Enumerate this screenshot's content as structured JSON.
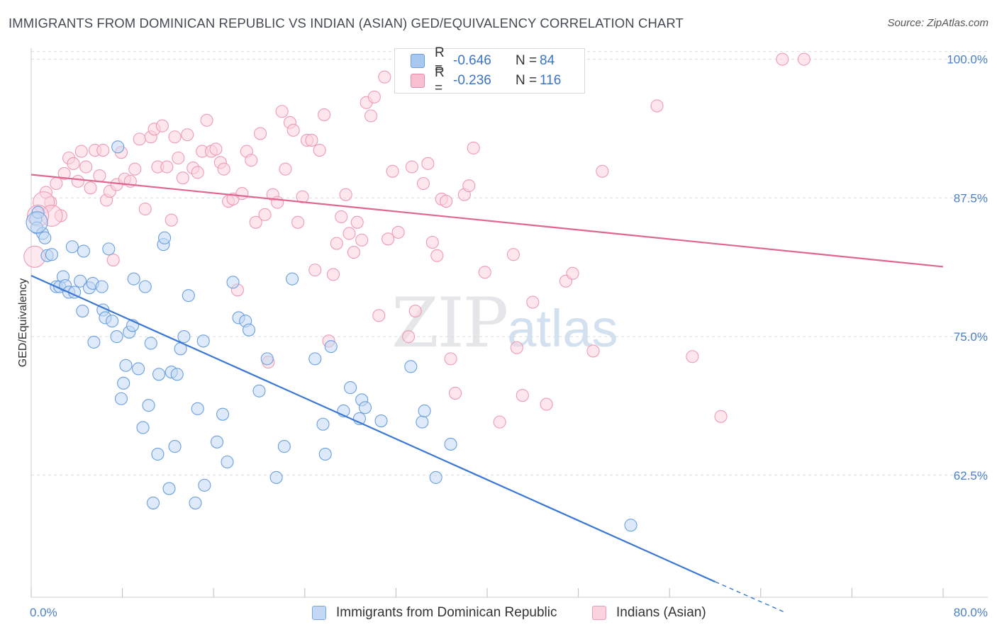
{
  "title": "IMMIGRANTS FROM DOMINICAN REPUBLIC VS INDIAN (ASIAN) GED/EQUIVALENCY CORRELATION CHART",
  "source": "Source: ZipAtlas.com",
  "watermark": {
    "zip": "ZIP",
    "atlas": "atlas"
  },
  "legend_top": {
    "rows": [
      {
        "r_label": "R =",
        "r_value": "-0.646",
        "n_label": "N =",
        "n_value": "84",
        "color": "#a9c8ef",
        "border": "#6a9fe0"
      },
      {
        "r_label": "R =",
        "r_value": "-0.236",
        "n_label": "N =",
        "n_value": "116",
        "color": "#f7bfd0",
        "border": "#e98aa8"
      }
    ]
  },
  "legend_bottom": {
    "items": [
      {
        "label": "Immigrants from Dominican Republic",
        "color": "#c3d8f4",
        "border": "#7aa6e0"
      },
      {
        "label": "Indians (Asian)",
        "color": "#fbd3df",
        "border": "#ef9ab5"
      }
    ]
  },
  "chart_data": {
    "type": "scatter",
    "title": "IMMIGRANTS FROM DOMINICAN REPUBLIC VS INDIAN (ASIAN) GED/EQUIVALENCY CORRELATION CHART",
    "xlabel": "",
    "ylabel": "GED/Equivalency",
    "xlim": [
      0,
      80
    ],
    "ylim": [
      51.5,
      101
    ],
    "x_tick_labels": [
      "0.0%",
      "80.0%"
    ],
    "y_ticks": [
      62.5,
      75.0,
      87.5,
      100.0
    ],
    "y_tick_labels": [
      "62.5%",
      "75.0%",
      "87.5%",
      "100.0%"
    ],
    "grid": true,
    "legend_position": "top-center",
    "series": [
      {
        "name": "Immigrants from Dominican Republic",
        "color": "#6a9fe0",
        "fill": "#c3d8f4",
        "trend": {
          "x": [
            0,
            60
          ],
          "y": [
            80.5,
            52.9
          ],
          "dashed_to": [
            66,
            50.2
          ],
          "color": "#3a78d4"
        },
        "points": [
          [
            0.4,
            85.6
          ],
          [
            0.5,
            84.8
          ],
          [
            0.6,
            86.2
          ],
          [
            1.0,
            84.3
          ],
          [
            1.2,
            83.9
          ],
          [
            1.4,
            82.3
          ],
          [
            1.8,
            82.4
          ],
          [
            2.2,
            79.5
          ],
          [
            2.5,
            79.5
          ],
          [
            2.8,
            80.4
          ],
          [
            3.0,
            79.6
          ],
          [
            3.3,
            79.0
          ],
          [
            3.6,
            83.1
          ],
          [
            3.8,
            79.0
          ],
          [
            4.3,
            80.0
          ],
          [
            4.5,
            77.3
          ],
          [
            4.6,
            82.7
          ],
          [
            5.1,
            79.4
          ],
          [
            5.4,
            79.8
          ],
          [
            5.5,
            74.5
          ],
          [
            6.2,
            79.5
          ],
          [
            6.3,
            77.4
          ],
          [
            6.5,
            76.7
          ],
          [
            6.8,
            82.9
          ],
          [
            7.1,
            76.4
          ],
          [
            7.5,
            75.0
          ],
          [
            7.6,
            92.1
          ],
          [
            7.9,
            69.4
          ],
          [
            8.1,
            70.8
          ],
          [
            8.3,
            72.4
          ],
          [
            8.6,
            75.4
          ],
          [
            8.9,
            76.0
          ],
          [
            9.0,
            80.2
          ],
          [
            9.4,
            72.1
          ],
          [
            9.8,
            66.8
          ],
          [
            10.0,
            79.5
          ],
          [
            10.3,
            68.8
          ],
          [
            10.5,
            74.4
          ],
          [
            10.7,
            60.0
          ],
          [
            11.1,
            64.4
          ],
          [
            11.2,
            71.6
          ],
          [
            11.6,
            83.3
          ],
          [
            11.7,
            83.9
          ],
          [
            12.1,
            61.3
          ],
          [
            12.3,
            71.8
          ],
          [
            12.6,
            65.1
          ],
          [
            12.8,
            71.6
          ],
          [
            13.1,
            73.9
          ],
          [
            13.4,
            75.0
          ],
          [
            13.8,
            78.7
          ],
          [
            14.4,
            60.0
          ],
          [
            14.6,
            68.5
          ],
          [
            15.1,
            74.6
          ],
          [
            15.2,
            61.6
          ],
          [
            16.3,
            65.5
          ],
          [
            16.8,
            68.0
          ],
          [
            17.2,
            63.7
          ],
          [
            17.7,
            79.9
          ],
          [
            18.2,
            76.7
          ],
          [
            18.8,
            76.4
          ],
          [
            19.1,
            75.6
          ],
          [
            20.0,
            70.1
          ],
          [
            20.7,
            73.0
          ],
          [
            21.5,
            62.3
          ],
          [
            22.2,
            65.1
          ],
          [
            22.9,
            80.2
          ],
          [
            24.9,
            73.0
          ],
          [
            25.6,
            67.1
          ],
          [
            25.8,
            64.4
          ],
          [
            26.3,
            74.1
          ],
          [
            27.4,
            68.3
          ],
          [
            28.0,
            70.4
          ],
          [
            28.8,
            67.6
          ],
          [
            29.0,
            69.3
          ],
          [
            29.3,
            68.6
          ],
          [
            30.7,
            67.4
          ],
          [
            33.3,
            72.3
          ],
          [
            34.3,
            67.3
          ],
          [
            34.5,
            68.3
          ],
          [
            35.5,
            62.3
          ],
          [
            36.8,
            65.3
          ],
          [
            52.6,
            58.0
          ]
        ],
        "large_points": [
          [
            0.5,
            85.3
          ]
        ]
      },
      {
        "name": "Indians (Asian)",
        "color": "#ef9ab5",
        "fill": "#fbd3df",
        "trend": {
          "x": [
            0,
            80
          ],
          "y": [
            89.6,
            81.3
          ],
          "color": "#e06692"
        },
        "points": [
          [
            1.3,
            88.0
          ],
          [
            1.7,
            87.1
          ],
          [
            2.2,
            88.8
          ],
          [
            2.6,
            85.9
          ],
          [
            2.9,
            89.7
          ],
          [
            3.3,
            91.1
          ],
          [
            3.7,
            90.6
          ],
          [
            4.1,
            89.0
          ],
          [
            4.4,
            91.7
          ],
          [
            4.8,
            90.3
          ],
          [
            5.2,
            88.4
          ],
          [
            5.6,
            91.8
          ],
          [
            6.0,
            89.5
          ],
          [
            6.3,
            91.8
          ],
          [
            6.6,
            87.3
          ],
          [
            6.9,
            88.1
          ],
          [
            7.2,
            81.9
          ],
          [
            7.5,
            88.7
          ],
          [
            7.9,
            91.6
          ],
          [
            8.2,
            89.2
          ],
          [
            8.7,
            89.0
          ],
          [
            9.1,
            90.1
          ],
          [
            9.5,
            92.8
          ],
          [
            10.0,
            86.5
          ],
          [
            10.5,
            93.0
          ],
          [
            10.8,
            93.7
          ],
          [
            11.1,
            90.3
          ],
          [
            11.5,
            94.0
          ],
          [
            11.9,
            90.3
          ],
          [
            12.3,
            85.5
          ],
          [
            12.6,
            93.0
          ],
          [
            12.9,
            91.1
          ],
          [
            13.3,
            89.3
          ],
          [
            13.7,
            93.2
          ],
          [
            14.2,
            90.2
          ],
          [
            14.6,
            89.8
          ],
          [
            15.0,
            91.7
          ],
          [
            15.4,
            94.5
          ],
          [
            15.8,
            91.7
          ],
          [
            16.2,
            91.9
          ],
          [
            16.6,
            90.7
          ],
          [
            16.9,
            90.1
          ],
          [
            17.3,
            87.2
          ],
          [
            17.7,
            87.4
          ],
          [
            18.1,
            79.2
          ],
          [
            18.5,
            87.9
          ],
          [
            18.9,
            91.7
          ],
          [
            19.3,
            90.9
          ],
          [
            19.7,
            85.3
          ],
          [
            20.1,
            93.3
          ],
          [
            20.5,
            86.0
          ],
          [
            20.8,
            72.7
          ],
          [
            21.2,
            87.8
          ],
          [
            21.6,
            87.1
          ],
          [
            22.0,
            95.3
          ],
          [
            22.3,
            90.1
          ],
          [
            22.7,
            94.3
          ],
          [
            23.0,
            93.6
          ],
          [
            23.4,
            85.3
          ],
          [
            23.8,
            87.6
          ],
          [
            24.2,
            92.7
          ],
          [
            24.6,
            92.7
          ],
          [
            24.9,
            81.0
          ],
          [
            25.3,
            91.8
          ],
          [
            25.7,
            95.0
          ],
          [
            26.1,
            74.6
          ],
          [
            26.5,
            80.6
          ],
          [
            26.8,
            83.4
          ],
          [
            27.2,
            85.8
          ],
          [
            27.6,
            87.8
          ],
          [
            27.9,
            84.3
          ],
          [
            28.3,
            82.6
          ],
          [
            28.6,
            85.3
          ],
          [
            29.0,
            83.7
          ],
          [
            29.4,
            96.1
          ],
          [
            29.8,
            94.9
          ],
          [
            30.1,
            96.6
          ],
          [
            30.5,
            76.9
          ],
          [
            31.0,
            98.4
          ],
          [
            31.3,
            83.8
          ],
          [
            31.7,
            89.9
          ],
          [
            32.2,
            84.4
          ],
          [
            33.1,
            75.0
          ],
          [
            33.4,
            90.3
          ],
          [
            33.7,
            77.3
          ],
          [
            34.4,
            88.8
          ],
          [
            34.8,
            90.6
          ],
          [
            35.2,
            83.5
          ],
          [
            35.6,
            82.3
          ],
          [
            36.0,
            87.4
          ],
          [
            36.4,
            87.2
          ],
          [
            36.8,
            73.0
          ],
          [
            37.2,
            69.9
          ],
          [
            38.0,
            87.8
          ],
          [
            38.4,
            88.6
          ],
          [
            38.8,
            92.0
          ],
          [
            39.8,
            80.8
          ],
          [
            41.1,
            67.3
          ],
          [
            42.3,
            82.4
          ],
          [
            42.6,
            74.0
          ],
          [
            43.1,
            69.7
          ],
          [
            44.0,
            78.1
          ],
          [
            45.2,
            68.9
          ],
          [
            46.9,
            80.0
          ],
          [
            47.5,
            80.7
          ],
          [
            49.3,
            73.7
          ],
          [
            50.1,
            89.9
          ],
          [
            54.9,
            95.8
          ],
          [
            58.0,
            73.2
          ],
          [
            60.5,
            67.8
          ],
          [
            65.9,
            100.0
          ],
          [
            67.8,
            100.0
          ],
          [
            35.0,
            100.0
          ],
          [
            46.8,
            100.0
          ],
          [
            47.0,
            100.0
          ]
        ],
        "large_points": [
          [
            0.3,
            82.2
          ],
          [
            1.1,
            87.1
          ],
          [
            1.8,
            85.9
          ],
          [
            0.6,
            85.9
          ]
        ]
      }
    ]
  }
}
